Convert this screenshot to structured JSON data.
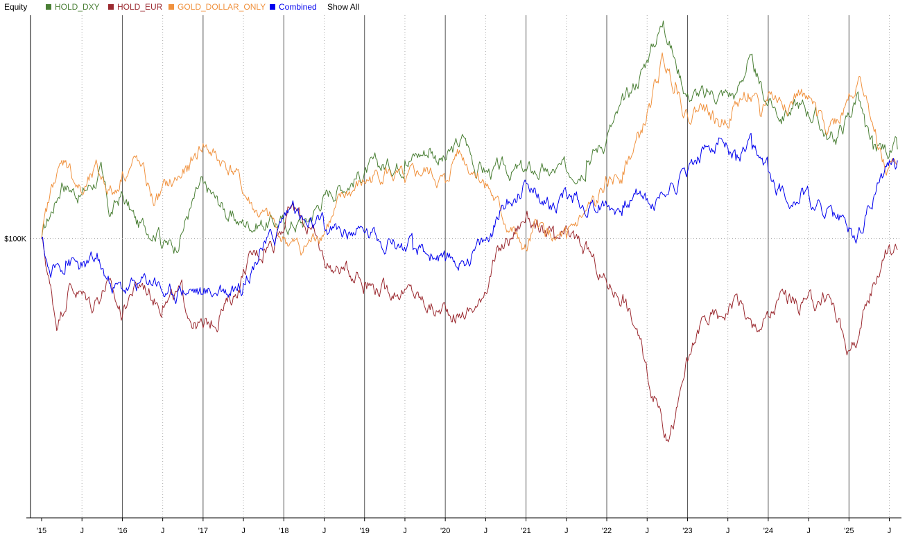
{
  "legend": {
    "title": "Equity",
    "show_all": "Show All"
  },
  "colors": {
    "HOLD_DXY": "#4a7f35",
    "HOLD_EUR": "#9b2a30",
    "GOLD_DOLLAR_ONLY": "#f0923f",
    "Combined": "#0000ee"
  },
  "chart_data": {
    "type": "line",
    "x_tick_labels": [
      "'15",
      "J",
      "'16",
      "J",
      "'17",
      "J",
      "'18",
      "J",
      "'19",
      "J",
      "'20",
      "J",
      "'21",
      "J",
      "'22",
      "J",
      "'23",
      "J",
      "'24",
      "J",
      "'25",
      "J"
    ],
    "x_range": [
      2015.0,
      2025.65
    ],
    "y_range": [
      50000,
      140000
    ],
    "y_tick_labels": [
      {
        "value": 100000,
        "label": "$100K"
      }
    ],
    "grid": "vertical lines at year starts (solid) and mid-years (dotted), horizontal dotted at $100K",
    "series": [
      {
        "name": "HOLD_DXY",
        "points": [
          [
            2015.0,
            100000
          ],
          [
            2015.25,
            110000
          ],
          [
            2015.5,
            108000
          ],
          [
            2015.75,
            112000
          ],
          [
            2015.85,
            104000
          ],
          [
            2016.0,
            108000
          ],
          [
            2016.2,
            102000
          ],
          [
            2016.45,
            102000
          ],
          [
            2016.5,
            98500
          ],
          [
            2016.65,
            98500
          ],
          [
            2016.8,
            104000
          ],
          [
            2017.0,
            110000
          ],
          [
            2017.2,
            106000
          ],
          [
            2017.35,
            104000
          ],
          [
            2017.45,
            103000
          ],
          [
            2018.0,
            103000
          ],
          [
            2018.3,
            103000
          ],
          [
            2018.5,
            108000
          ],
          [
            2019.0,
            112000
          ],
          [
            2019.5,
            114000
          ],
          [
            2019.8,
            116000
          ],
          [
            2020.0,
            114000
          ],
          [
            2020.25,
            118000
          ],
          [
            2020.4,
            112000
          ],
          [
            2020.5,
            112000
          ],
          [
            2021.0,
            112000
          ],
          [
            2021.25,
            112000
          ],
          [
            2021.5,
            112000
          ],
          [
            2021.75,
            114000
          ],
          [
            2022.0,
            118000
          ],
          [
            2022.3,
            126000
          ],
          [
            2022.5,
            132000
          ],
          [
            2022.7,
            139000
          ],
          [
            2022.85,
            132000
          ],
          [
            2023.0,
            126000
          ],
          [
            2023.2,
            126000
          ],
          [
            2023.6,
            126000
          ],
          [
            2023.75,
            132000
          ],
          [
            2023.85,
            129000
          ],
          [
            2024.0,
            124000
          ],
          [
            2024.2,
            122000
          ],
          [
            2024.4,
            124000
          ],
          [
            2024.6,
            122000
          ],
          [
            2024.75,
            118000
          ],
          [
            2024.85,
            118000
          ],
          [
            2025.0,
            122000
          ],
          [
            2025.1,
            126000
          ],
          [
            2025.2,
            120000
          ],
          [
            2025.3,
            116000
          ],
          [
            2025.6,
            116000
          ]
        ]
      },
      {
        "name": "HOLD_EUR",
        "points": [
          [
            2015.0,
            100000
          ],
          [
            2015.1,
            92000
          ],
          [
            2015.2,
            84000
          ],
          [
            2015.35,
            92000
          ],
          [
            2015.5,
            90000
          ],
          [
            2015.65,
            88000
          ],
          [
            2015.8,
            92000
          ],
          [
            2016.0,
            86000
          ],
          [
            2016.1,
            90000
          ],
          [
            2016.25,
            92000
          ],
          [
            2016.5,
            88000
          ],
          [
            2016.75,
            90000
          ],
          [
            2016.9,
            85000
          ],
          [
            2017.0,
            84000
          ],
          [
            2017.2,
            86000
          ],
          [
            2017.4,
            90000
          ],
          [
            2017.55,
            96000
          ],
          [
            2017.75,
            98000
          ],
          [
            2017.9,
            100000
          ],
          [
            2018.1,
            106000
          ],
          [
            2018.3,
            102000
          ],
          [
            2018.5,
            96000
          ],
          [
            2018.7,
            94000
          ],
          [
            2018.9,
            94000
          ],
          [
            2019.0,
            92000
          ],
          [
            2019.25,
            91000
          ],
          [
            2019.5,
            91000
          ],
          [
            2019.7,
            89000
          ],
          [
            2019.9,
            87000
          ],
          [
            2020.0,
            88000
          ],
          [
            2020.2,
            86000
          ],
          [
            2020.4,
            88000
          ],
          [
            2020.6,
            96000
          ],
          [
            2020.8,
            100000
          ],
          [
            2021.0,
            104000
          ],
          [
            2021.15,
            102000
          ],
          [
            2021.35,
            100000
          ],
          [
            2021.6,
            100000
          ],
          [
            2021.85,
            96000
          ],
          [
            2022.0,
            92000
          ],
          [
            2022.2,
            90000
          ],
          [
            2022.35,
            84000
          ],
          [
            2022.5,
            76000
          ],
          [
            2022.65,
            70000
          ],
          [
            2022.75,
            64000
          ],
          [
            2022.85,
            68000
          ],
          [
            2023.0,
            78000
          ],
          [
            2023.2,
            86000
          ],
          [
            2023.4,
            86000
          ],
          [
            2023.6,
            90000
          ],
          [
            2023.8,
            84000
          ],
          [
            2024.0,
            86000
          ],
          [
            2024.2,
            90000
          ],
          [
            2024.4,
            88000
          ],
          [
            2024.6,
            88000
          ],
          [
            2024.75,
            90000
          ],
          [
            2024.9,
            84000
          ],
          [
            2025.0,
            80000
          ],
          [
            2025.15,
            84000
          ],
          [
            2025.3,
            92000
          ],
          [
            2025.45,
            98000
          ],
          [
            2025.6,
            98000
          ]
        ]
      },
      {
        "name": "GOLD_DOLLAR_ONLY",
        "points": [
          [
            2015.0,
            100000
          ],
          [
            2015.15,
            110000
          ],
          [
            2015.3,
            114000
          ],
          [
            2015.5,
            108000
          ],
          [
            2015.7,
            112000
          ],
          [
            2015.9,
            108000
          ],
          [
            2016.0,
            112000
          ],
          [
            2016.2,
            114000
          ],
          [
            2016.4,
            106000
          ],
          [
            2016.6,
            110000
          ],
          [
            2016.8,
            112000
          ],
          [
            2017.0,
            117000
          ],
          [
            2017.2,
            114000
          ],
          [
            2017.4,
            112000
          ],
          [
            2017.5,
            108000
          ],
          [
            2017.7,
            104000
          ],
          [
            2017.9,
            102000
          ],
          [
            2018.0,
            100000
          ],
          [
            2018.2,
            98000
          ],
          [
            2018.4,
            100000
          ],
          [
            2018.6,
            104000
          ],
          [
            2018.8,
            108000
          ],
          [
            2019.0,
            110000
          ],
          [
            2019.25,
            112000
          ],
          [
            2019.5,
            110000
          ],
          [
            2019.75,
            112000
          ],
          [
            2020.0,
            110000
          ],
          [
            2020.15,
            116000
          ],
          [
            2020.35,
            112000
          ],
          [
            2020.5,
            110000
          ],
          [
            2020.7,
            104000
          ],
          [
            2020.9,
            100000
          ],
          [
            2021.0,
            98000
          ],
          [
            2021.15,
            102000
          ],
          [
            2021.35,
            100000
          ],
          [
            2021.5,
            100000
          ],
          [
            2021.7,
            104000
          ],
          [
            2021.85,
            106000
          ],
          [
            2022.0,
            110000
          ],
          [
            2022.2,
            112000
          ],
          [
            2022.4,
            118000
          ],
          [
            2022.55,
            124000
          ],
          [
            2022.7,
            132000
          ],
          [
            2022.85,
            128000
          ],
          [
            2023.0,
            122000
          ],
          [
            2023.2,
            124000
          ],
          [
            2023.4,
            120000
          ],
          [
            2023.6,
            124000
          ],
          [
            2023.75,
            126000
          ],
          [
            2023.9,
            122000
          ],
          [
            2024.0,
            126000
          ],
          [
            2024.2,
            124000
          ],
          [
            2024.4,
            126000
          ],
          [
            2024.6,
            122000
          ],
          [
            2024.75,
            120000
          ],
          [
            2024.9,
            122000
          ],
          [
            2025.0,
            126000
          ],
          [
            2025.15,
            128000
          ],
          [
            2025.3,
            120000
          ],
          [
            2025.45,
            112000
          ],
          [
            2025.6,
            114000
          ]
        ]
      },
      {
        "name": "Combined",
        "points": [
          [
            2015.0,
            100000
          ],
          [
            2015.1,
            94000
          ],
          [
            2015.3,
            96000
          ],
          [
            2015.5,
            95000
          ],
          [
            2015.7,
            96000
          ],
          [
            2015.85,
            92000
          ],
          [
            2016.0,
            91000
          ],
          [
            2016.2,
            92000
          ],
          [
            2016.4,
            93000
          ],
          [
            2016.55,
            90000
          ],
          [
            2016.7,
            91000
          ],
          [
            2016.9,
            91000
          ],
          [
            2017.0,
            90000
          ],
          [
            2017.2,
            91000
          ],
          [
            2017.35,
            91000
          ],
          [
            2017.5,
            92000
          ],
          [
            2017.7,
            98000
          ],
          [
            2017.9,
            100000
          ],
          [
            2018.0,
            104000
          ],
          [
            2018.1,
            106000
          ],
          [
            2018.3,
            102000
          ],
          [
            2018.5,
            102000
          ],
          [
            2018.8,
            101000
          ],
          [
            2019.0,
            101000
          ],
          [
            2019.3,
            100000
          ],
          [
            2019.6,
            98000
          ],
          [
            2019.9,
            97000
          ],
          [
            2020.0,
            96000
          ],
          [
            2020.2,
            96000
          ],
          [
            2020.35,
            98000
          ],
          [
            2020.55,
            100000
          ],
          [
            2020.7,
            106000
          ],
          [
            2020.9,
            108000
          ],
          [
            2021.0,
            110000
          ],
          [
            2021.15,
            108000
          ],
          [
            2021.3,
            106000
          ],
          [
            2021.5,
            108000
          ],
          [
            2021.7,
            106000
          ],
          [
            2021.9,
            106000
          ],
          [
            2022.0,
            106000
          ],
          [
            2022.2,
            106000
          ],
          [
            2022.4,
            108000
          ],
          [
            2022.6,
            106000
          ],
          [
            2022.8,
            110000
          ],
          [
            2023.0,
            112000
          ],
          [
            2023.2,
            116000
          ],
          [
            2023.4,
            118000
          ],
          [
            2023.6,
            114000
          ],
          [
            2023.8,
            116000
          ],
          [
            2024.0,
            112000
          ],
          [
            2024.2,
            108000
          ],
          [
            2024.4,
            108000
          ],
          [
            2024.6,
            106000
          ],
          [
            2024.8,
            104000
          ],
          [
            2025.0,
            102000
          ],
          [
            2025.1,
            100000
          ],
          [
            2025.2,
            104000
          ],
          [
            2025.35,
            110000
          ],
          [
            2025.5,
            114000
          ],
          [
            2025.6,
            114000
          ]
        ]
      }
    ]
  }
}
